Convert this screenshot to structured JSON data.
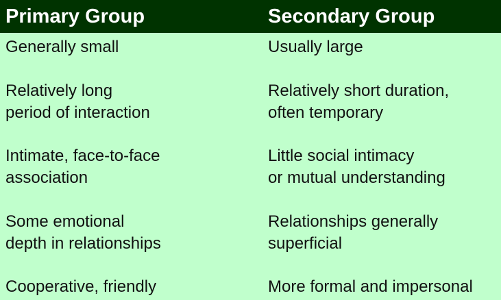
{
  "header": {
    "primary": "Primary Group",
    "secondary": "Secondary Group"
  },
  "rows": [
    {
      "primary": [
        "Generally small"
      ],
      "secondary": [
        "Usually large"
      ]
    },
    {
      "primary": [
        "Relatively long",
        "period of interaction"
      ],
      "secondary": [
        "Relatively short duration,",
        "often temporary"
      ]
    },
    {
      "primary": [
        "Intimate, face-to-face",
        "association"
      ],
      "secondary": [
        "Little social intimacy",
        "or mutual understanding"
      ]
    },
    {
      "primary": [
        "Some emotional",
        "depth in relationships"
      ],
      "secondary": [
        "Relationships generally",
        "superficial"
      ]
    },
    {
      "primary": [
        "Cooperative, friendly"
      ],
      "secondary": [
        "More formal and impersonal"
      ]
    }
  ],
  "colors": {
    "header_bg": "#003300",
    "header_text": "#ffffff",
    "body_bg": "#c0ffcc",
    "body_text": "#111111"
  }
}
